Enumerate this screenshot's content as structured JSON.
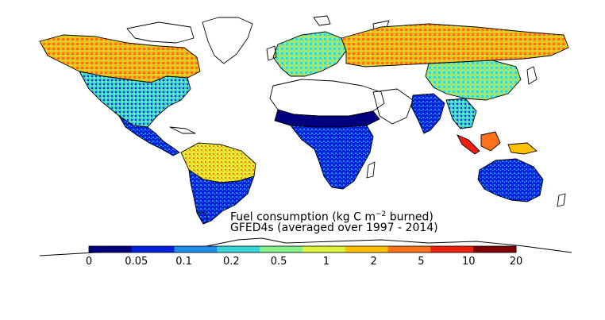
{
  "caption": {
    "line1_prefix": "Fuel consumption (kg C m",
    "line1_exponent": "−2",
    "line1_suffix": " burned)",
    "line2": "GFED4s (averaged over 1997 - 2014)"
  },
  "colorbar": {
    "tick_labels": [
      "0",
      "0.05",
      "0.1",
      "0.2",
      "0.5",
      "1",
      "2",
      "5",
      "10",
      "20"
    ],
    "segment_colors": [
      "#00007f",
      "#0022dd",
      "#1e8eea",
      "#37d4d8",
      "#86f08a",
      "#dcf43c",
      "#ffc000",
      "#ff7018",
      "#f02010",
      "#800000"
    ]
  },
  "colors": {
    "ocean": "#ffffff",
    "coastline": "#000000"
  }
}
